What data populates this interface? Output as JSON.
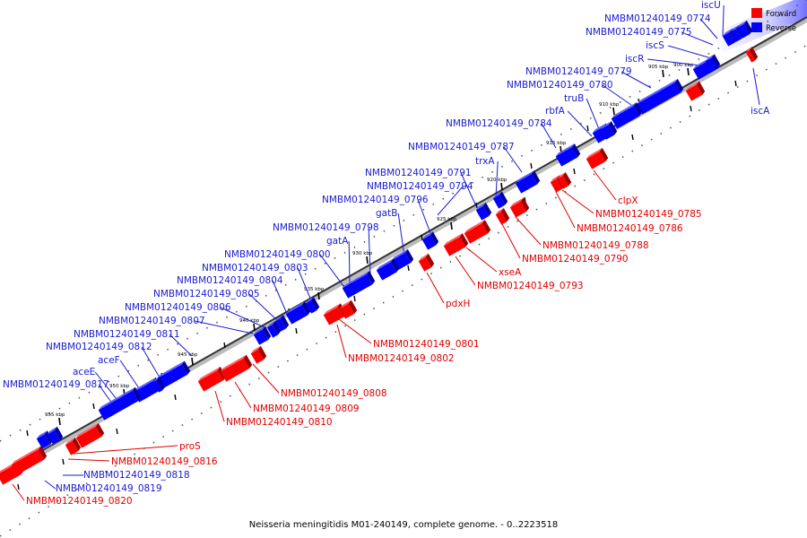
{
  "caption": "Neisseria meningitidis M01-240149, complete genome. - 0..2223518",
  "legend": {
    "forward": {
      "label": "Forward",
      "color": "#ff0000"
    },
    "reverse": {
      "label": "Reverse",
      "color": "#0000ff"
    }
  },
  "ticks": [
    "900 kbp",
    "905 kbp",
    "910 kbp",
    "915 kbp",
    "920 kbp",
    "925 kbp",
    "930 kbp",
    "935 kbp",
    "940 kbp",
    "945 kbp",
    "950 kbp",
    "955 kbp"
  ],
  "reverse_labels": [
    "iscU",
    "NMBM01240149_0774",
    "NMBM01240149_0775",
    "iscS",
    "iscR",
    "NMBM01240149_0779",
    "NMBM01240149_0780",
    "truB",
    "rbfA",
    "NMBM01240149_0784",
    "NMBM01240149_0787",
    "trxA",
    "NMBM01240149_0791",
    "NMBM01240149_0794",
    "NMBM01240149_0796",
    "gatB",
    "NMBM01240149_0798",
    "gatA",
    "NMBM01240149_0800",
    "NMBM01240149_0803",
    "NMBM01240149_0804",
    "NMBM01240149_0805",
    "NMBM01240149_0806",
    "NMBM01240149_0807",
    "NMBM01240149_0811",
    "NMBM01240149_0812",
    "aceF",
    "aceE",
    "NMBM01240149_0817",
    "NMBM01240149_0818",
    "NMBM01240149_0819",
    "iscA"
  ],
  "forward_labels": [
    "clpX",
    "NMBM01240149_0785",
    "NMBM01240149_0786",
    "NMBM01240149_0788",
    "NMBM01240149_0790",
    "xseA",
    "NMBM01240149_0793",
    "pdxH",
    "NMBM01240149_0801",
    "NMBM01240149_0802",
    "NMBM01240149_0808",
    "NMBM01240149_0809",
    "NMBM01240149_0810",
    "proS",
    "NMBM01240149_0816",
    "NMBM01240149_0820"
  ]
}
